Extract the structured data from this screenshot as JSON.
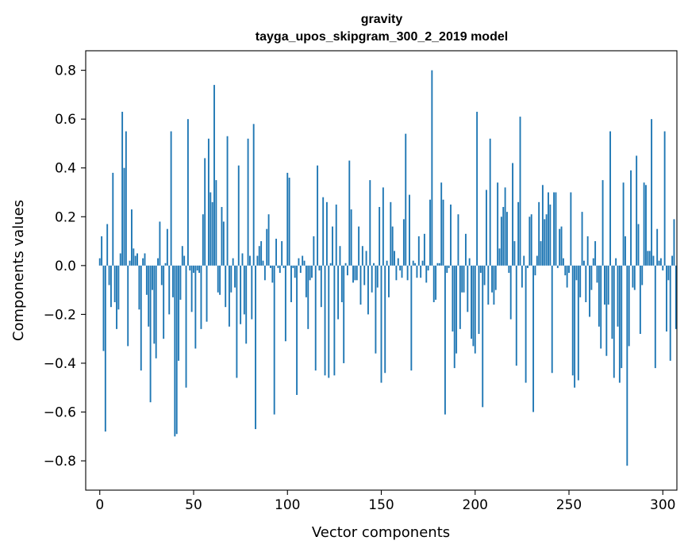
{
  "chart_data": {
    "type": "bar",
    "title": "gravity",
    "subtitle": "tayga_upos_skipgram_300_2_2019 model",
    "xlabel": "Vector components",
    "ylabel": "Components values",
    "xlim": [
      -7.5,
      307.5
    ],
    "ylim": [
      -0.92,
      0.88
    ],
    "xticks": [
      0,
      50,
      100,
      150,
      200,
      250,
      300
    ],
    "xtick_labels": [
      "0",
      "50",
      "100",
      "150",
      "200",
      "250",
      "300"
    ],
    "yticks": [
      -0.8,
      -0.6,
      -0.4,
      -0.2,
      0.0,
      0.2,
      0.4,
      0.6,
      0.8
    ],
    "ytick_labels": [
      "−0.8",
      "−0.6",
      "−0.4",
      "−0.2",
      "0.0",
      "0.2",
      "0.4",
      "0.6",
      "0.8"
    ],
    "grid": false,
    "bar_color": "#1f77b4",
    "values": [
      0.03,
      0.12,
      -0.35,
      -0.68,
      0.17,
      -0.08,
      -0.17,
      0.38,
      -0.15,
      -0.26,
      -0.18,
      0.05,
      0.63,
      0.4,
      0.55,
      -0.33,
      0.02,
      0.23,
      0.07,
      0.04,
      0.05,
      -0.18,
      -0.43,
      0.03,
      0.05,
      -0.12,
      -0.25,
      -0.56,
      -0.1,
      -0.32,
      -0.38,
      0.03,
      0.18,
      -0.08,
      -0.3,
      0.01,
      0.15,
      -0.2,
      0.55,
      -0.13,
      -0.7,
      -0.69,
      -0.39,
      -0.14,
      0.08,
      0.04,
      -0.5,
      0.6,
      -0.02,
      -0.19,
      -0.03,
      -0.34,
      -0.02,
      -0.03,
      -0.26,
      0.21,
      0.44,
      -0.23,
      0.52,
      0.3,
      0.26,
      0.74,
      0.35,
      -0.11,
      -0.12,
      0.24,
      0.18,
      -0.17,
      0.53,
      -0.25,
      -0.11,
      0.03,
      -0.09,
      -0.46,
      0.41,
      -0.24,
      0.05,
      -0.2,
      -0.32,
      0.52,
      0.04,
      -0.22,
      0.58,
      -0.67,
      0.04,
      0.08,
      0.1,
      0.02,
      -0.06,
      0.15,
      0.21,
      -0.01,
      -0.07,
      -0.61,
      0.11,
      -0.01,
      -0.03,
      0.1,
      -0.01,
      -0.31,
      0.38,
      0.36,
      -0.15,
      -0.01,
      -0.05,
      -0.53,
      0.03,
      -0.03,
      0.04,
      0.02,
      -0.13,
      -0.26,
      -0.06,
      -0.05,
      0.12,
      -0.43,
      0.41,
      -0.02,
      -0.17,
      0.28,
      -0.45,
      0.26,
      -0.46,
      0.01,
      0.16,
      -0.45,
      0.25,
      -0.22,
      0.08,
      -0.15,
      -0.4,
      0.01,
      -0.04,
      0.43,
      0.23,
      -0.07,
      -0.06,
      -0.06,
      0.16,
      -0.16,
      0.08,
      -0.08,
      0.06,
      -0.2,
      0.35,
      -0.11,
      0.01,
      -0.36,
      -0.09,
      0.24,
      -0.48,
      0.32,
      -0.44,
      0.02,
      -0.13,
      0.26,
      0.16,
      0.06,
      -0.06,
      0.03,
      -0.02,
      -0.05,
      0.19,
      0.54,
      -0.06,
      0.29,
      -0.43,
      0.02,
      0.01,
      -0.05,
      0.12,
      -0.05,
      0.02,
      0.13,
      -0.07,
      -0.02,
      0.27,
      0.8,
      -0.15,
      -0.14,
      0.01,
      0.01,
      0.34,
      0.27,
      -0.61,
      -0.03,
      -0.01,
      0.25,
      -0.27,
      -0.42,
      -0.36,
      0.21,
      -0.26,
      -0.11,
      -0.11,
      0.13,
      -0.19,
      0.03,
      -0.3,
      -0.33,
      -0.36,
      0.63,
      -0.28,
      -0.03,
      -0.58,
      -0.08,
      0.31,
      -0.16,
      0.52,
      -0.11,
      -0.16,
      -0.1,
      0.34,
      0.07,
      0.2,
      0.24,
      0.32,
      0.22,
      -0.03,
      -0.22,
      0.42,
      0.1,
      -0.41,
      0.26,
      0.61,
      -0.09,
      0.04,
      -0.48,
      -0.01,
      0.2,
      0.21,
      -0.6,
      -0.04,
      0.04,
      0.26,
      0.1,
      0.33,
      0.19,
      0.21,
      0.3,
      0.25,
      -0.44,
      0.3,
      0.3,
      -0.01,
      0.15,
      0.16,
      0.03,
      -0.04,
      -0.09,
      -0.03,
      0.3,
      -0.45,
      -0.5,
      -0.06,
      -0.47,
      -0.13,
      0.22,
      0.02,
      -0.15,
      0.12,
      -0.21,
      -0.1,
      0.03,
      0.1,
      -0.07,
      -0.25,
      -0.34,
      0.35,
      -0.16,
      -0.37,
      -0.16,
      0.55,
      -0.3,
      -0.46,
      0.03,
      -0.25,
      -0.48,
      -0.42,
      0.34,
      0.12,
      -0.82,
      -0.33,
      0.39,
      -0.09,
      -0.1,
      0.45,
      0.17,
      -0.28,
      -0.08,
      0.34,
      0.33,
      0.06,
      0.06,
      0.6,
      0.04,
      -0.42,
      0.15,
      0.02,
      0.03,
      -0.02,
      0.55,
      -0.27,
      -0.06,
      -0.39,
      0.04,
      0.19,
      -0.26
    ]
  }
}
